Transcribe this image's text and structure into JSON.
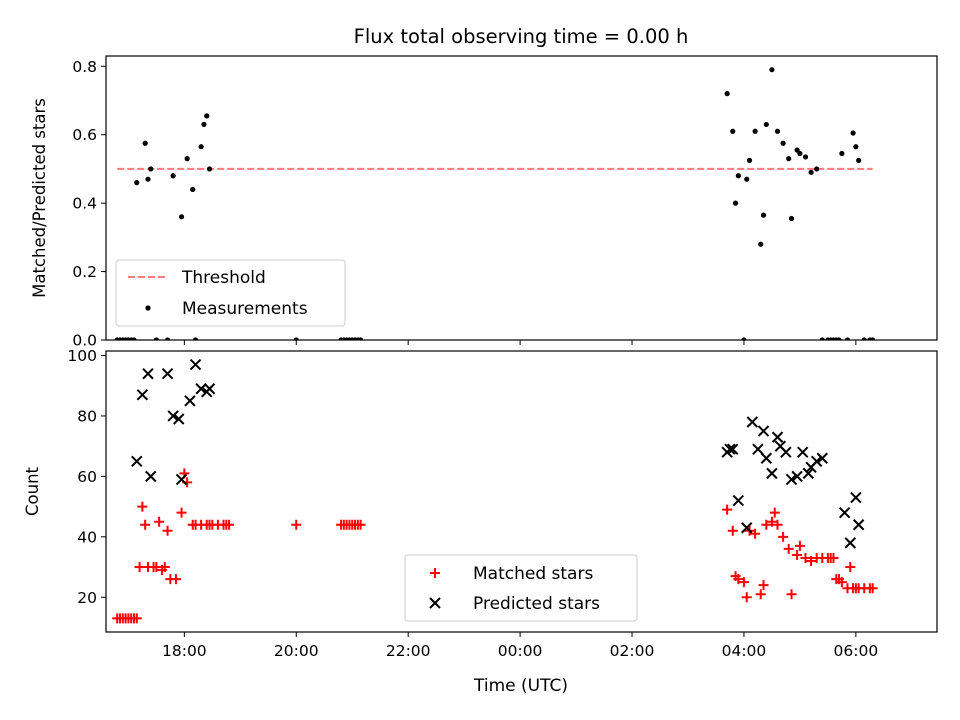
{
  "figure": {
    "title": "Flux total observing time = 0.00 h",
    "xlabel": "Time (UTC)"
  },
  "chart_data": [
    {
      "type": "scatter",
      "name": "ratio-panel",
      "ylabel": "Matched/Predicted stars",
      "xlim": [
        -7.4,
        7.45
      ],
      "ylim": [
        0,
        0.83
      ],
      "yticks": [
        0.0,
        0.2,
        0.4,
        0.6,
        0.8
      ],
      "ytick_labels": [
        "0.0",
        "0.2",
        "0.4",
        "0.6",
        "0.8"
      ],
      "xticks": [
        -6,
        -4,
        -2,
        0,
        2,
        4,
        6
      ],
      "threshold": {
        "name": "Threshold",
        "value": 0.5,
        "x_range": [
          -7.2,
          6.3
        ],
        "color": "#ff7a7a"
      },
      "legend": {
        "placement": "lower-left",
        "entries": [
          "Threshold",
          "Measurements"
        ]
      },
      "series": [
        {
          "name": "Measurements",
          "color": "#000000",
          "x": [
            -7.2,
            -7.15,
            -7.1,
            -7.05,
            -7.0,
            -6.95,
            -6.9,
            -6.85,
            -6.7,
            -6.65,
            -6.6,
            -6.5,
            -6.3,
            -6.2,
            -6.05,
            -5.95,
            -5.85,
            -5.8,
            -5.7,
            -5.65,
            -5.6,
            -5.55,
            -4.0,
            -3.2,
            -3.15,
            -3.1,
            -3.05,
            -3.0,
            -2.95,
            -2.9,
            -2.85,
            3.7,
            3.8,
            3.85,
            3.9,
            4.0,
            4.05,
            4.1,
            4.2,
            4.3,
            4.35,
            4.4,
            4.5,
            4.6,
            4.7,
            4.8,
            4.85,
            4.95,
            5.0,
            5.1,
            5.2,
            5.3,
            5.4,
            5.5,
            5.55,
            5.6,
            5.65,
            5.7,
            5.75,
            5.85,
            5.95,
            6.0,
            6.05,
            6.15,
            6.25,
            6.3
          ],
          "y": [
            0.0,
            0.0,
            0.0,
            0.0,
            0.0,
            0.0,
            0.0,
            0.46,
            0.575,
            0.47,
            0.5,
            0.0,
            0.0,
            0.48,
            0.36,
            0.53,
            0.44,
            0.0,
            0.565,
            0.63,
            0.655,
            0.5,
            0.0,
            0.0,
            0.0,
            0.0,
            0.0,
            0.0,
            0.0,
            0.0,
            0.0,
            0.72,
            0.61,
            0.4,
            0.48,
            0.0,
            0.47,
            0.525,
            0.61,
            0.28,
            0.365,
            0.63,
            0.79,
            0.61,
            0.575,
            0.53,
            0.355,
            0.555,
            0.545,
            0.535,
            0.49,
            0.5,
            0.0,
            0.0,
            0.0,
            0.0,
            0.0,
            0.0,
            0.545,
            0.0,
            0.605,
            0.565,
            0.525,
            0.0,
            0.0,
            0.0
          ]
        }
      ]
    },
    {
      "type": "scatter",
      "name": "count-panel",
      "ylabel": "Count",
      "xlim": [
        -7.4,
        7.45
      ],
      "ylim": [
        8.5,
        101.5
      ],
      "yticks": [
        20,
        40,
        60,
        80,
        100
      ],
      "ytick_labels": [
        "20",
        "40",
        "60",
        "80",
        "100"
      ],
      "xticks": [
        -6,
        -4,
        -2,
        0,
        2,
        4,
        6
      ],
      "xtick_labels": [
        "18:00",
        "20:00",
        "22:00",
        "00:00",
        "02:00",
        "04:00",
        "06:00"
      ],
      "legend": {
        "placement": "lower-center",
        "entries": [
          "Matched stars",
          "Predicted stars"
        ]
      },
      "series": [
        {
          "name": "Matched stars",
          "marker": "plus",
          "color": "#ff0000",
          "x": [
            -7.2,
            -7.15,
            -7.1,
            -7.05,
            -7.0,
            -6.95,
            -6.9,
            -6.85,
            -6.8,
            -6.75,
            -6.7,
            -6.65,
            -6.55,
            -6.5,
            -6.45,
            -6.4,
            -6.35,
            -6.3,
            -6.25,
            -6.15,
            -6.05,
            -6.0,
            -5.95,
            -5.85,
            -5.8,
            -5.7,
            -5.6,
            -5.55,
            -5.5,
            -5.4,
            -5.3,
            -5.25,
            -5.2,
            -4.0,
            -3.2,
            -3.15,
            -3.1,
            -3.05,
            -3.0,
            -2.95,
            -2.9,
            -2.85,
            3.7,
            3.8,
            3.85,
            3.9,
            4.0,
            4.05,
            4.1,
            4.2,
            4.3,
            4.35,
            4.4,
            4.5,
            4.55,
            4.6,
            4.7,
            4.8,
            4.85,
            4.95,
            5.0,
            5.1,
            5.2,
            5.3,
            5.4,
            5.5,
            5.55,
            5.6,
            5.65,
            5.7,
            5.75,
            5.85,
            5.9,
            5.95,
            6.0,
            6.05,
            6.15,
            6.25,
            6.3
          ],
          "y": [
            13,
            13,
            13,
            13,
            13,
            13,
            13,
            13,
            30,
            50,
            44,
            30,
            30,
            30,
            45,
            29,
            30,
            42,
            26,
            26,
            48,
            61,
            58,
            44,
            44,
            44,
            44,
            44,
            44,
            44,
            44,
            44,
            44,
            44,
            44,
            44,
            44,
            44,
            44,
            44,
            44,
            44,
            49,
            42,
            27,
            26,
            25,
            20,
            42,
            41,
            21,
            24,
            44,
            45,
            48,
            44,
            40,
            36,
            21,
            34,
            37,
            33,
            32,
            33,
            33,
            33,
            33,
            33,
            26,
            26,
            25,
            23,
            30,
            23,
            23,
            23,
            23,
            23,
            23
          ]
        },
        {
          "name": "Predicted stars",
          "marker": "cross",
          "color": "#000000",
          "x": [
            -6.85,
            -6.75,
            -6.65,
            -6.6,
            -6.3,
            -6.2,
            -6.1,
            -6.05,
            -5.9,
            -5.8,
            -5.7,
            -5.6,
            -5.55,
            3.7,
            3.75,
            3.8,
            3.9,
            4.05,
            4.15,
            4.25,
            4.35,
            4.4,
            4.5,
            4.6,
            4.65,
            4.75,
            4.85,
            4.95,
            5.05,
            5.15,
            5.2,
            5.3,
            5.4,
            5.8,
            5.9,
            6.0,
            6.05
          ],
          "y": [
            65,
            87,
            94,
            60,
            94,
            80,
            79,
            59,
            85,
            97,
            89,
            88,
            89,
            68,
            69,
            69,
            52,
            43,
            78,
            69,
            75,
            66,
            61,
            73,
            70,
            68,
            59,
            60,
            68,
            61,
            63,
            65,
            66,
            48,
            38,
            53,
            44
          ]
        }
      ]
    }
  ]
}
